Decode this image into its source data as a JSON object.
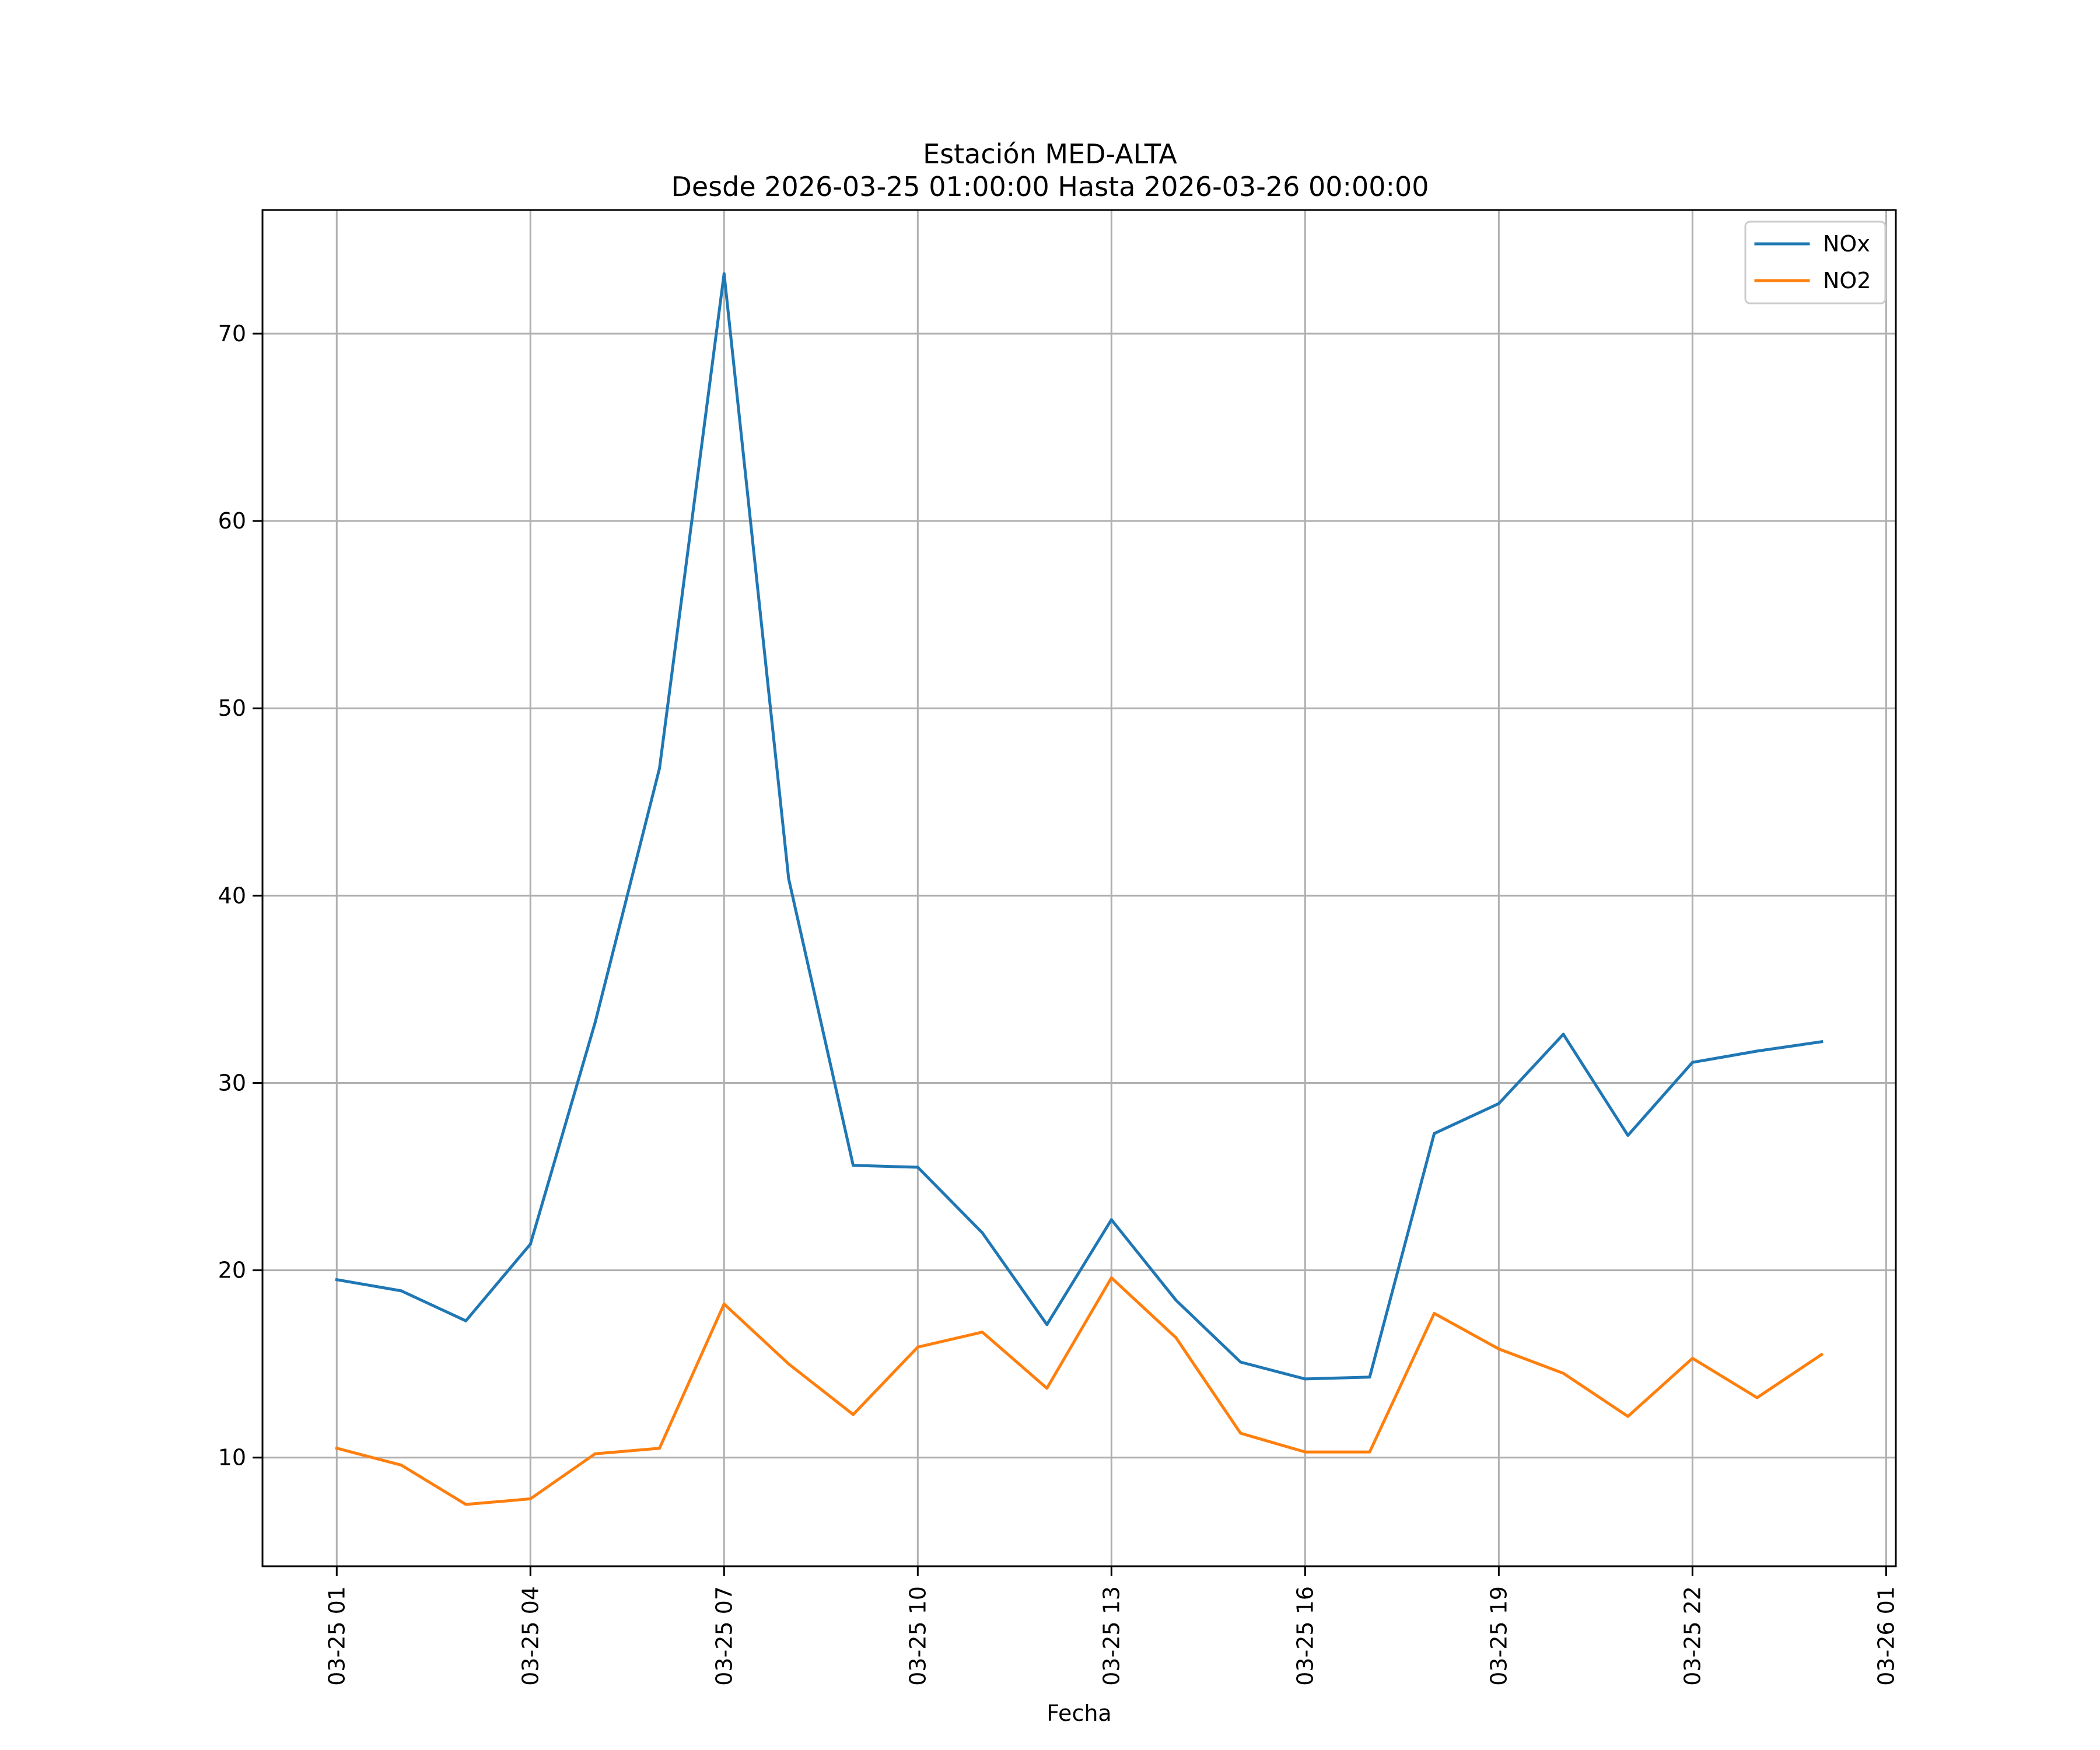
{
  "chart_data": {
    "type": "line",
    "title": "Estación MED-ALTA",
    "subtitle": "Desde 2026-03-25 01:00:00 Hasta 2026-03-26 00:00:00",
    "xlabel": "Fecha",
    "ylabel": "",
    "x": [
      "01:00",
      "02:00",
      "03:00",
      "04:00",
      "05:00",
      "06:00",
      "07:00",
      "08:00",
      "09:00",
      "10:00",
      "11:00",
      "12:00",
      "13:00",
      "14:00",
      "15:00",
      "16:00",
      "17:00",
      "18:00",
      "19:00",
      "20:00",
      "21:00",
      "22:00",
      "23:00",
      "24:00"
    ],
    "x_hours": [
      1,
      2,
      3,
      4,
      5,
      6,
      7,
      8,
      9,
      10,
      11,
      12,
      13,
      14,
      15,
      16,
      17,
      18,
      19,
      20,
      21,
      22,
      23,
      24
    ],
    "xlim": [
      -0.15,
      25.15
    ],
    "x_ticks": [
      {
        "hour": 1,
        "label": "03-25 01"
      },
      {
        "hour": 4,
        "label": "03-25 04"
      },
      {
        "hour": 7,
        "label": "03-25 07"
      },
      {
        "hour": 10,
        "label": "03-25 10"
      },
      {
        "hour": 13,
        "label": "03-25 13"
      },
      {
        "hour": 16,
        "label": "03-25 16"
      },
      {
        "hour": 19,
        "label": "03-25 19"
      },
      {
        "hour": 22,
        "label": "03-25 22"
      },
      {
        "hour": 25,
        "label": "03-26 01"
      }
    ],
    "ylim": [
      4.2,
      76.6
    ],
    "y_ticks": [
      10,
      20,
      30,
      40,
      50,
      60,
      70
    ],
    "grid": true,
    "legend_position": "top-right",
    "series": [
      {
        "name": "NOx",
        "color": "#1f77b4",
        "values": [
          19.5,
          18.9,
          17.3,
          21.4,
          33.2,
          46.8,
          73.2,
          40.9,
          25.6,
          25.5,
          22.0,
          17.1,
          22.7,
          18.4,
          15.1,
          14.2,
          14.3,
          27.3,
          28.9,
          32.6,
          27.2,
          31.1,
          31.7,
          32.2
        ]
      },
      {
        "name": "NO2",
        "color": "#ff7f0e",
        "values": [
          10.5,
          9.6,
          7.5,
          7.8,
          10.2,
          10.5,
          18.2,
          15.0,
          12.3,
          15.9,
          16.7,
          13.7,
          19.6,
          16.4,
          11.3,
          10.3,
          10.3,
          17.7,
          15.8,
          14.5,
          12.2,
          15.3,
          13.2,
          15.5
        ]
      }
    ]
  }
}
